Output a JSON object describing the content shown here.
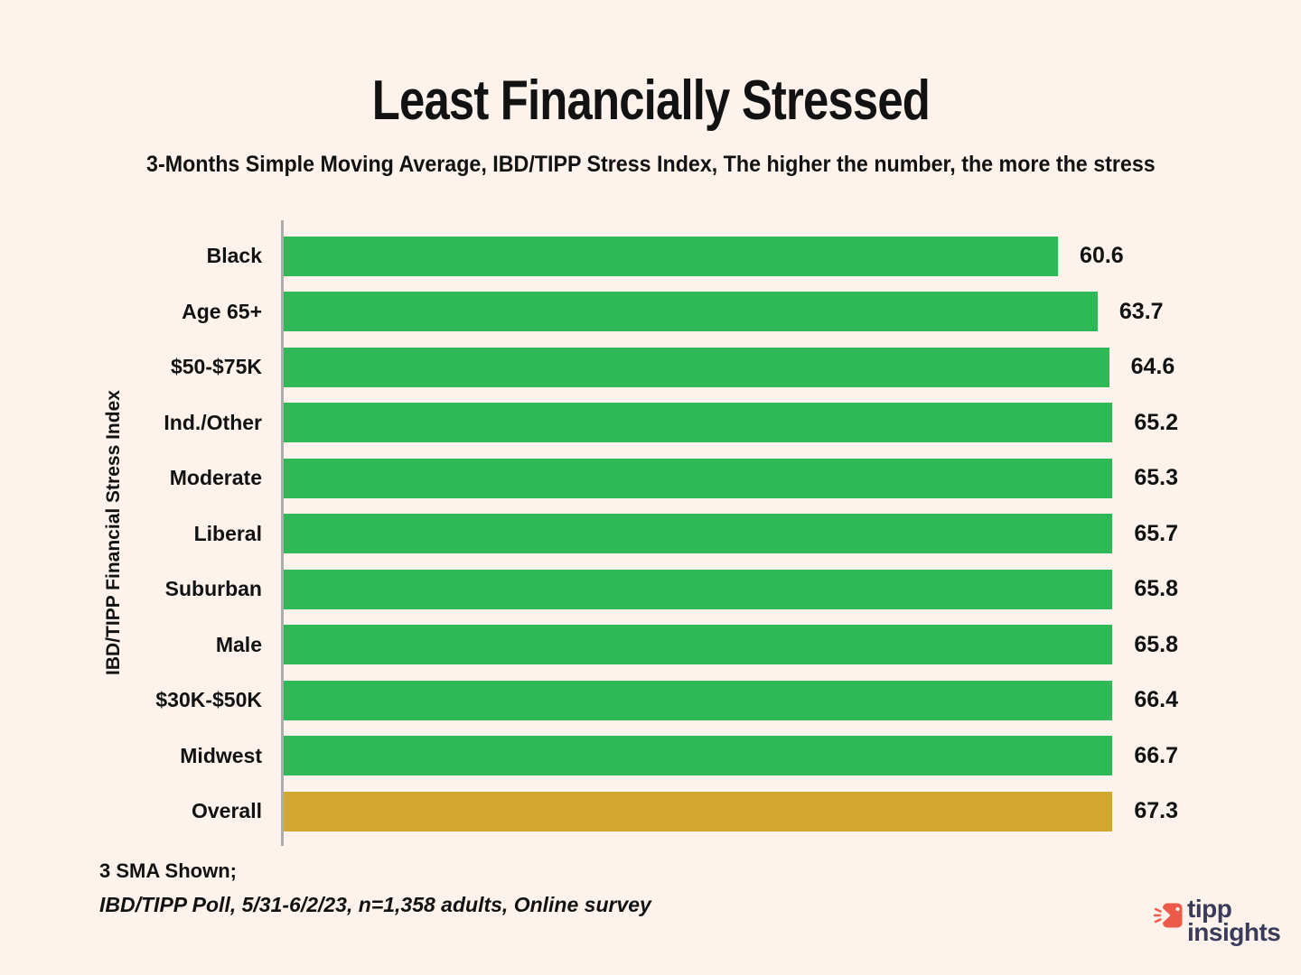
{
  "page": {
    "background": "#FDF3EC",
    "text_color": "#121212",
    "axis_color": "#ACACAC"
  },
  "header": {
    "title": "Least Financially Stressed",
    "subtitle": "3-Months Simple Moving Average, IBD/TIPP Stress Index, The higher the number, the more the stress"
  },
  "chart_data": {
    "type": "bar",
    "orientation": "horizontal",
    "title": "Least Financially Stressed",
    "subtitle": "3-Months Simple Moving Average, IBD/TIPP Stress Index, The higher the number, the more the stress",
    "categories": [
      "Black",
      "Age 65+",
      "$50-$75K",
      "Ind./Other",
      "Moderate",
      "Liberal",
      "Suburban",
      "Male",
      "$30K-$50K",
      "Midwest",
      "Overall"
    ],
    "values": [
      60.6,
      63.7,
      64.6,
      65.2,
      65.3,
      65.7,
      65.8,
      65.8,
      66.4,
      66.7,
      67.3
    ],
    "xlabel": "",
    "ylabel": "IBD/TIPP Financial Stress Index",
    "xlim": [
      0,
      70
    ],
    "grid": false,
    "value_labels": true,
    "legend": "none",
    "bar_color": "#2FB956",
    "highlight": {
      "category": "Overall",
      "color": "#D1A72E"
    }
  },
  "footer": {
    "note_line1": "3 SMA Shown;",
    "note_line2": "IBD/TIPP Poll, 5/31-6/2/23, n=1,358 adults, Online survey"
  },
  "logo": {
    "line1": "tipp",
    "line2": "insights",
    "icon": "tipp-insights-logo-icon",
    "icon_color": "#EE5A49",
    "text_color": "#383B59"
  }
}
